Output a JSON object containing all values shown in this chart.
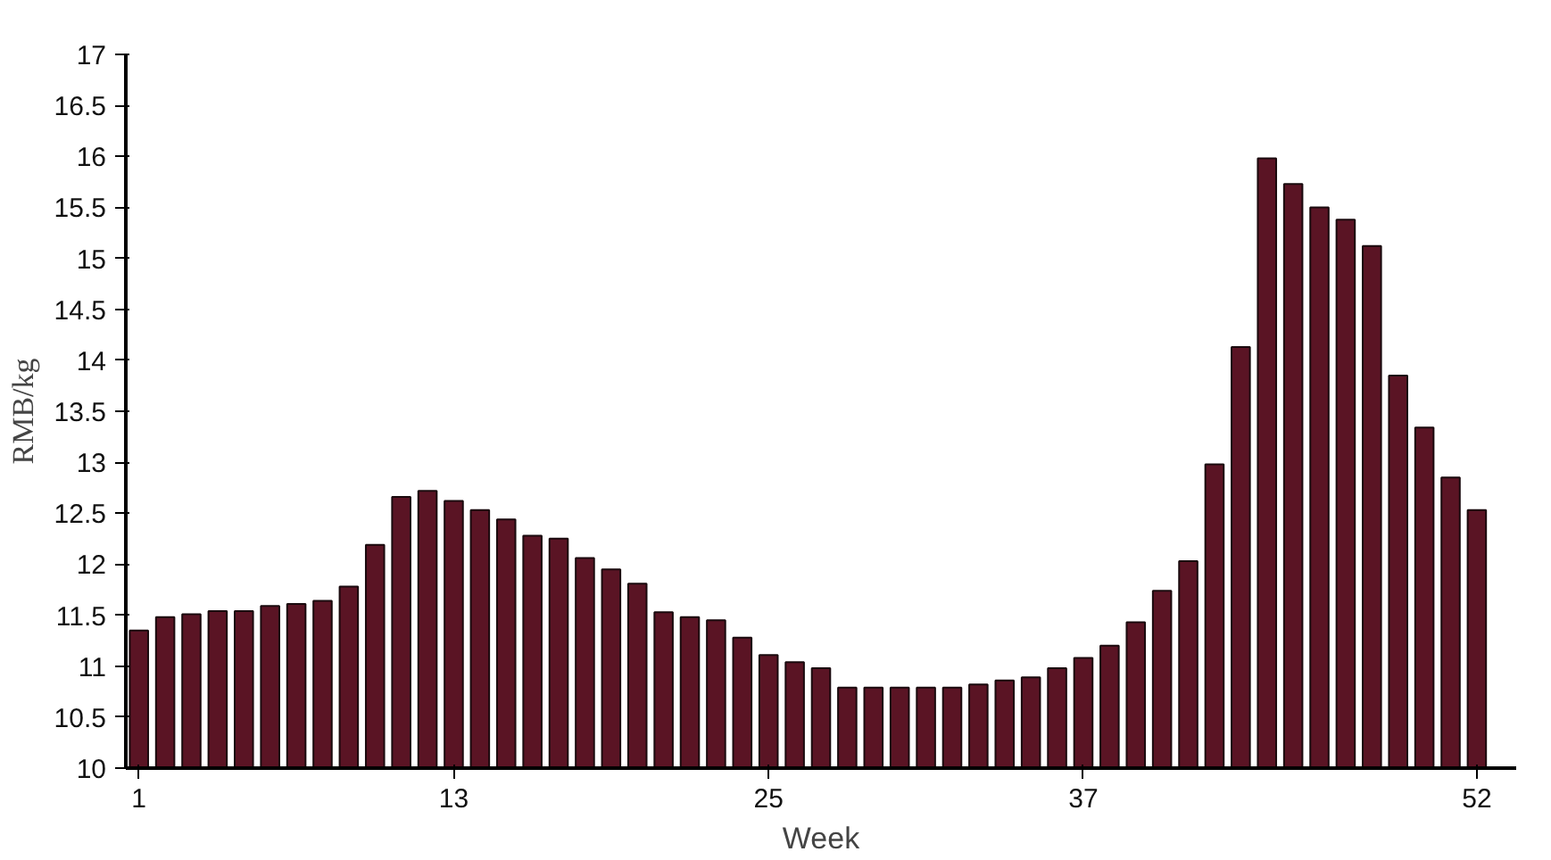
{
  "chart_data": {
    "type": "bar",
    "xlabel": "Week",
    "ylabel": "RMB/kg",
    "x": [
      1,
      2,
      3,
      4,
      5,
      6,
      7,
      8,
      9,
      10,
      11,
      12,
      13,
      14,
      15,
      16,
      17,
      18,
      19,
      20,
      21,
      22,
      23,
      24,
      25,
      26,
      27,
      28,
      29,
      30,
      31,
      32,
      33,
      34,
      35,
      36,
      37,
      38,
      39,
      40,
      41,
      42,
      43,
      44,
      45,
      46,
      47,
      48,
      49,
      50,
      51,
      52
    ],
    "values": [
      11.35,
      11.48,
      11.51,
      11.54,
      11.54,
      11.59,
      11.61,
      11.64,
      11.78,
      12.19,
      12.66,
      12.72,
      12.62,
      12.53,
      12.44,
      12.28,
      12.25,
      12.06,
      11.95,
      11.81,
      11.53,
      11.48,
      11.45,
      11.28,
      11.11,
      11.04,
      10.98,
      10.79,
      10.79,
      10.79,
      10.79,
      10.79,
      10.82,
      10.86,
      10.89,
      10.98,
      11.08,
      11.2,
      11.43,
      11.74,
      12.03,
      12.98,
      14.13,
      15.98,
      15.73,
      15.5,
      15.38,
      15.12,
      13.85,
      13.34,
      12.85,
      12.53
    ],
    "color": "#5a1424",
    "xlim": [
      0.5,
      53.5
    ],
    "xticks": [
      1,
      13,
      25,
      37,
      52
    ],
    "ylim": [
      10,
      17
    ],
    "yticks": [
      10,
      10.5,
      11,
      11.5,
      12,
      12.5,
      13,
      13.5,
      14,
      14.5,
      15,
      15.5,
      16,
      16.5,
      17
    ],
    "grid": false
  }
}
